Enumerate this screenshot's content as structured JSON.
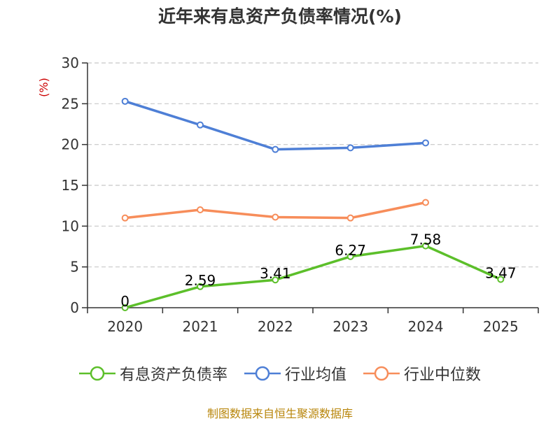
{
  "chart_data": {
    "type": "line",
    "title": "近年来有息资产负债率情况(%)",
    "ylabel": "(%)",
    "xlabel": "",
    "categories": [
      "2020",
      "2021",
      "2022",
      "2023",
      "2024",
      "2025"
    ],
    "ylim": [
      0,
      30
    ],
    "yticks": [
      0,
      5,
      10,
      15,
      20,
      25,
      30
    ],
    "grid": "horizontal-dashed",
    "legend_position": "bottom",
    "series": [
      {
        "name": "有息资产负债率",
        "color": "#5cbf2a",
        "values": [
          0,
          2.59,
          3.41,
          6.27,
          7.58,
          3.47
        ],
        "labels": [
          "0",
          "2.59",
          "3.41",
          "6.27",
          "7.58",
          "3.47"
        ]
      },
      {
        "name": "行业均值",
        "color": "#4e7fd6",
        "values": [
          25.3,
          22.4,
          19.4,
          19.6,
          20.2,
          null
        ]
      },
      {
        "name": "行业中位数",
        "color": "#f78d5a",
        "values": [
          11.0,
          12.0,
          11.1,
          11.0,
          12.9,
          null
        ]
      }
    ]
  },
  "source_note": "制图数据来自恒生聚源数据库"
}
